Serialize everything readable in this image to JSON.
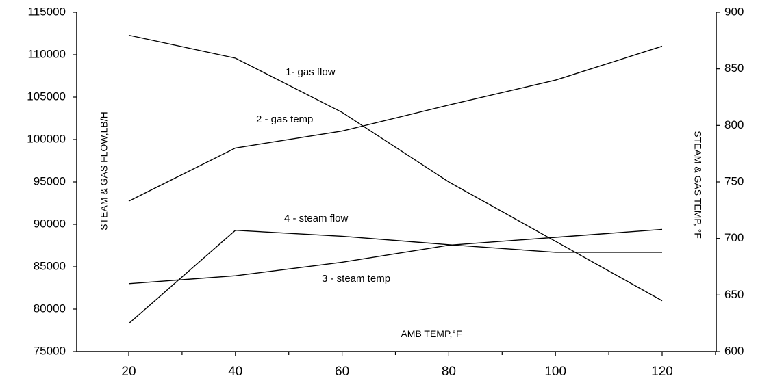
{
  "chart_data": {
    "type": "line",
    "x_axis": {
      "label": "AMB TEMP,°F",
      "ticks": [
        "20",
        "40",
        "60",
        "80",
        "100",
        "120"
      ]
    },
    "y_left": {
      "label": "STEAM & GAS FLOW,LB/H",
      "range": [
        75000,
        115000
      ],
      "ticks": [
        "75000",
        "80000",
        "85000",
        "90000",
        "95000",
        "100000",
        "105000",
        "110000",
        "115000"
      ]
    },
    "y_right": {
      "label": "STEAM & GAS TEMP, °F",
      "range": [
        600,
        900
      ],
      "ticks": [
        "600",
        "650",
        "700",
        "750",
        "800",
        "850",
        "900"
      ]
    },
    "series": [
      {
        "name": "1- gas flow",
        "axis": "left",
        "x": [
          20,
          40,
          60,
          80,
          100,
          120
        ],
        "y": [
          112300,
          109600,
          103200,
          95000,
          88000,
          81000
        ]
      },
      {
        "name": "2 - gas temp",
        "axis": "right",
        "x": [
          20,
          40,
          60,
          80,
          100,
          120
        ],
        "y": [
          733,
          780,
          795,
          818,
          840,
          870
        ]
      },
      {
        "name": "3 - steam temp",
        "axis": "right",
        "x": [
          20,
          40,
          60,
          80,
          100,
          120
        ],
        "y": [
          660,
          667,
          679,
          694,
          701,
          708
        ]
      },
      {
        "name": "4 - steam flow",
        "axis": "left",
        "x": [
          20,
          40,
          60,
          80,
          100,
          120
        ],
        "y": [
          78300,
          89300,
          88600,
          87600,
          86700,
          86700
        ]
      }
    ],
    "grid": false,
    "legend": "none"
  }
}
